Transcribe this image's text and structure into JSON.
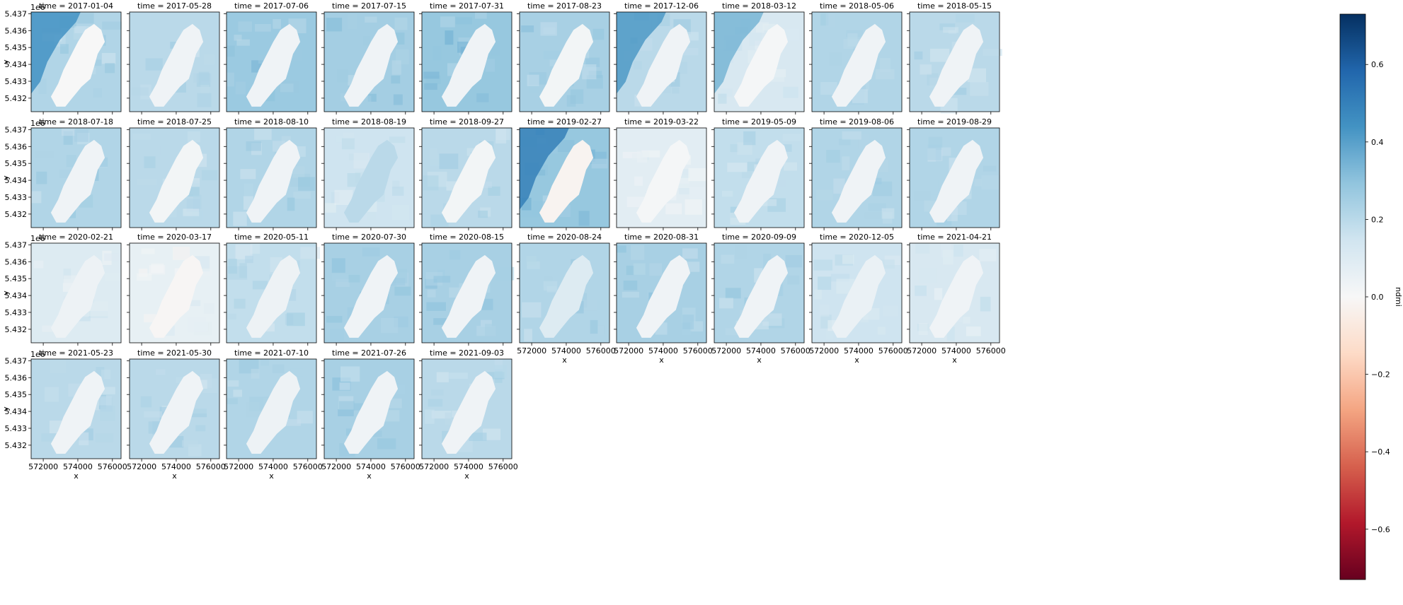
{
  "chart_data": {
    "type": "heatmap",
    "layout": "facet-grid",
    "columns": 10,
    "facet_title_prefix": "time = ",
    "facets": [
      {
        "time": "2017-01-04",
        "moisture": 0.22,
        "lake": 0.0,
        "dark_nw": 1
      },
      {
        "time": "2017-05-28",
        "moisture": 0.2,
        "lake": 0.03,
        "dark_nw": 0
      },
      {
        "time": "2017-07-06",
        "moisture": 0.27,
        "lake": 0.03,
        "dark_nw": 0
      },
      {
        "time": "2017-07-15",
        "moisture": 0.25,
        "lake": 0.03,
        "dark_nw": 0
      },
      {
        "time": "2017-07-31",
        "moisture": 0.28,
        "lake": 0.03,
        "dark_nw": 0
      },
      {
        "time": "2017-08-23",
        "moisture": 0.24,
        "lake": 0.02,
        "dark_nw": 0
      },
      {
        "time": "2017-12-06",
        "moisture": 0.2,
        "lake": 0.03,
        "dark_nw": 1
      },
      {
        "time": "2018-03-12",
        "moisture": 0.12,
        "lake": 0.01,
        "dark_nw": 1
      },
      {
        "time": "2018-05-06",
        "moisture": 0.22,
        "lake": 0.03,
        "dark_nw": 0
      },
      {
        "time": "2018-05-15",
        "moisture": 0.2,
        "lake": 0.03,
        "dark_nw": 0
      },
      {
        "time": "2018-07-18",
        "moisture": 0.22,
        "lake": 0.03,
        "dark_nw": 0
      },
      {
        "time": "2018-07-25",
        "moisture": 0.2,
        "lake": 0.02,
        "dark_nw": 0
      },
      {
        "time": "2018-08-10",
        "moisture": 0.22,
        "lake": 0.03,
        "dark_nw": 0
      },
      {
        "time": "2018-08-19",
        "moisture": 0.15,
        "lake": 0.2,
        "dark_nw": 0
      },
      {
        "time": "2018-09-27",
        "moisture": 0.2,
        "lake": 0.02,
        "dark_nw": 0
      },
      {
        "time": "2019-02-27",
        "moisture": 0.28,
        "lake": -0.02,
        "dark_nw": 1
      },
      {
        "time": "2019-03-22",
        "moisture": 0.08,
        "lake": 0.01,
        "dark_nw": 0
      },
      {
        "time": "2019-05-09",
        "moisture": 0.18,
        "lake": 0.03,
        "dark_nw": 0
      },
      {
        "time": "2019-08-06",
        "moisture": 0.22,
        "lake": 0.03,
        "dark_nw": 0
      },
      {
        "time": "2019-08-29",
        "moisture": 0.22,
        "lake": 0.03,
        "dark_nw": 0
      },
      {
        "time": "2020-02-21",
        "moisture": 0.1,
        "lake": 0.04,
        "dark_nw": 0
      },
      {
        "time": "2020-03-17",
        "moisture": 0.06,
        "lake": -0.01,
        "dark_nw": 0
      },
      {
        "time": "2020-05-11",
        "moisture": 0.18,
        "lake": 0.04,
        "dark_nw": 0
      },
      {
        "time": "2020-07-30",
        "moisture": 0.24,
        "lake": 0.03,
        "dark_nw": 0
      },
      {
        "time": "2020-08-15",
        "moisture": 0.24,
        "lake": 0.03,
        "dark_nw": 0
      },
      {
        "time": "2020-08-24",
        "moisture": 0.22,
        "lake": 0.1,
        "dark_nw": 0
      },
      {
        "time": "2020-08-31",
        "moisture": 0.24,
        "lake": 0.03,
        "dark_nw": 0
      },
      {
        "time": "2020-09-09",
        "moisture": 0.22,
        "lake": 0.03,
        "dark_nw": 0
      },
      {
        "time": "2020-12-05",
        "moisture": 0.15,
        "lake": 0.05,
        "dark_nw": 0
      },
      {
        "time": "2021-04-21",
        "moisture": 0.12,
        "lake": 0.03,
        "dark_nw": 0
      },
      {
        "time": "2021-05-23",
        "moisture": 0.2,
        "lake": 0.03,
        "dark_nw": 0
      },
      {
        "time": "2021-05-30",
        "moisture": 0.2,
        "lake": 0.03,
        "dark_nw": 0
      },
      {
        "time": "2021-07-10",
        "moisture": 0.22,
        "lake": 0.04,
        "dark_nw": 0
      },
      {
        "time": "2021-07-26",
        "moisture": 0.24,
        "lake": 0.03,
        "dark_nw": 0
      },
      {
        "time": "2021-09-03",
        "moisture": 0.2,
        "lake": 0.03,
        "dark_nw": 0
      }
    ],
    "x_label": "x",
    "y_label": "y",
    "x_ticks": [
      572000,
      574000,
      576000
    ],
    "x_tick_labels": [
      "572000",
      "574000",
      "576000"
    ],
    "x_range": [
      571300,
      576500
    ],
    "y_ticks": [
      5.432,
      5.433,
      5.434,
      5.435,
      5.436,
      5.437
    ],
    "y_tick_labels": [
      "5.432",
      "5.433",
      "5.434",
      "5.435",
      "5.436",
      "5.437"
    ],
    "y_range": [
      5.4312,
      5.4371
    ],
    "y_offset_text": "1e6",
    "colorbar": {
      "label": "ndmi",
      "cmap": "RdBu",
      "vmin": -0.73,
      "vmax": 0.73,
      "ticks": [
        -0.6,
        -0.4,
        -0.2,
        0.0,
        0.2,
        0.4,
        0.6
      ],
      "tick_labels": [
        "−0.6",
        "−0.4",
        "−0.2",
        "0.0",
        "0.2",
        "0.4",
        "0.6"
      ]
    }
  }
}
